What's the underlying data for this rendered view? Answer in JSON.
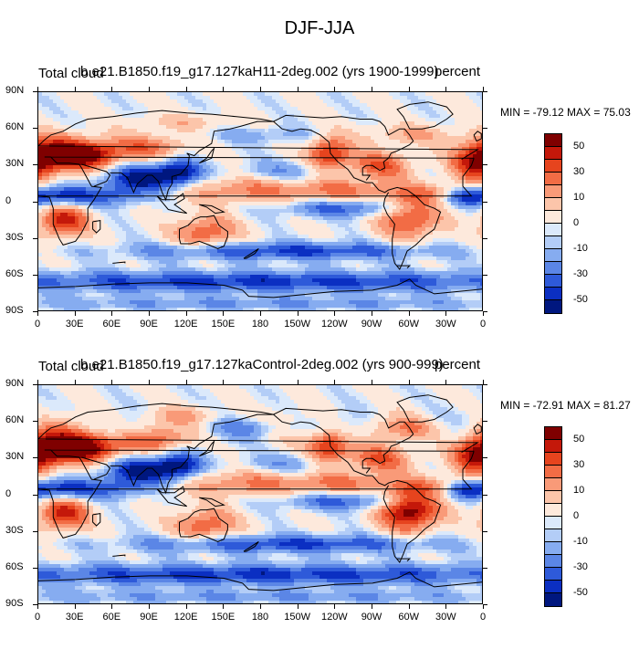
{
  "title": "DJF-JJA",
  "panels": [
    {
      "variable": "Total cloud",
      "case_name": "b.e21.B1850.f19_g17.127kaH11-2deg.002 (yrs 1900-1999)",
      "units": "percent",
      "min_max": "MIN = -79.12 MAX =  75.03",
      "variant": 1
    },
    {
      "variable": "Total cloud",
      "case_name": "b.e21.B1850.f19_g17.127kaControl-2deg.002 (yrs 900-999)",
      "units": "percent",
      "min_max": "MIN = -72.91 MAX =  81.27",
      "variant": 2
    }
  ],
  "lat_labels": [
    "90N",
    "60N",
    "30N",
    "0",
    "30S",
    "60S",
    "90S"
  ],
  "lon_labels": [
    "0",
    "30E",
    "60E",
    "90E",
    "120E",
    "150E",
    "180",
    "150W",
    "120W",
    "90W",
    "60W",
    "30W",
    "0"
  ],
  "colorbar": {
    "labels": [
      "50",
      "30",
      "10",
      "0",
      "-10",
      "-30",
      "-50"
    ],
    "colors": [
      "#7f0000",
      "#c4180a",
      "#e6441e",
      "#f26c45",
      "#f99a78",
      "#fcc5aa",
      "#fde9dc",
      "#dbe9fb",
      "#b3cdf7",
      "#86acf0",
      "#5b86e6",
      "#2e5ad9",
      "#0b2fc2",
      "#00177f"
    ]
  }
}
